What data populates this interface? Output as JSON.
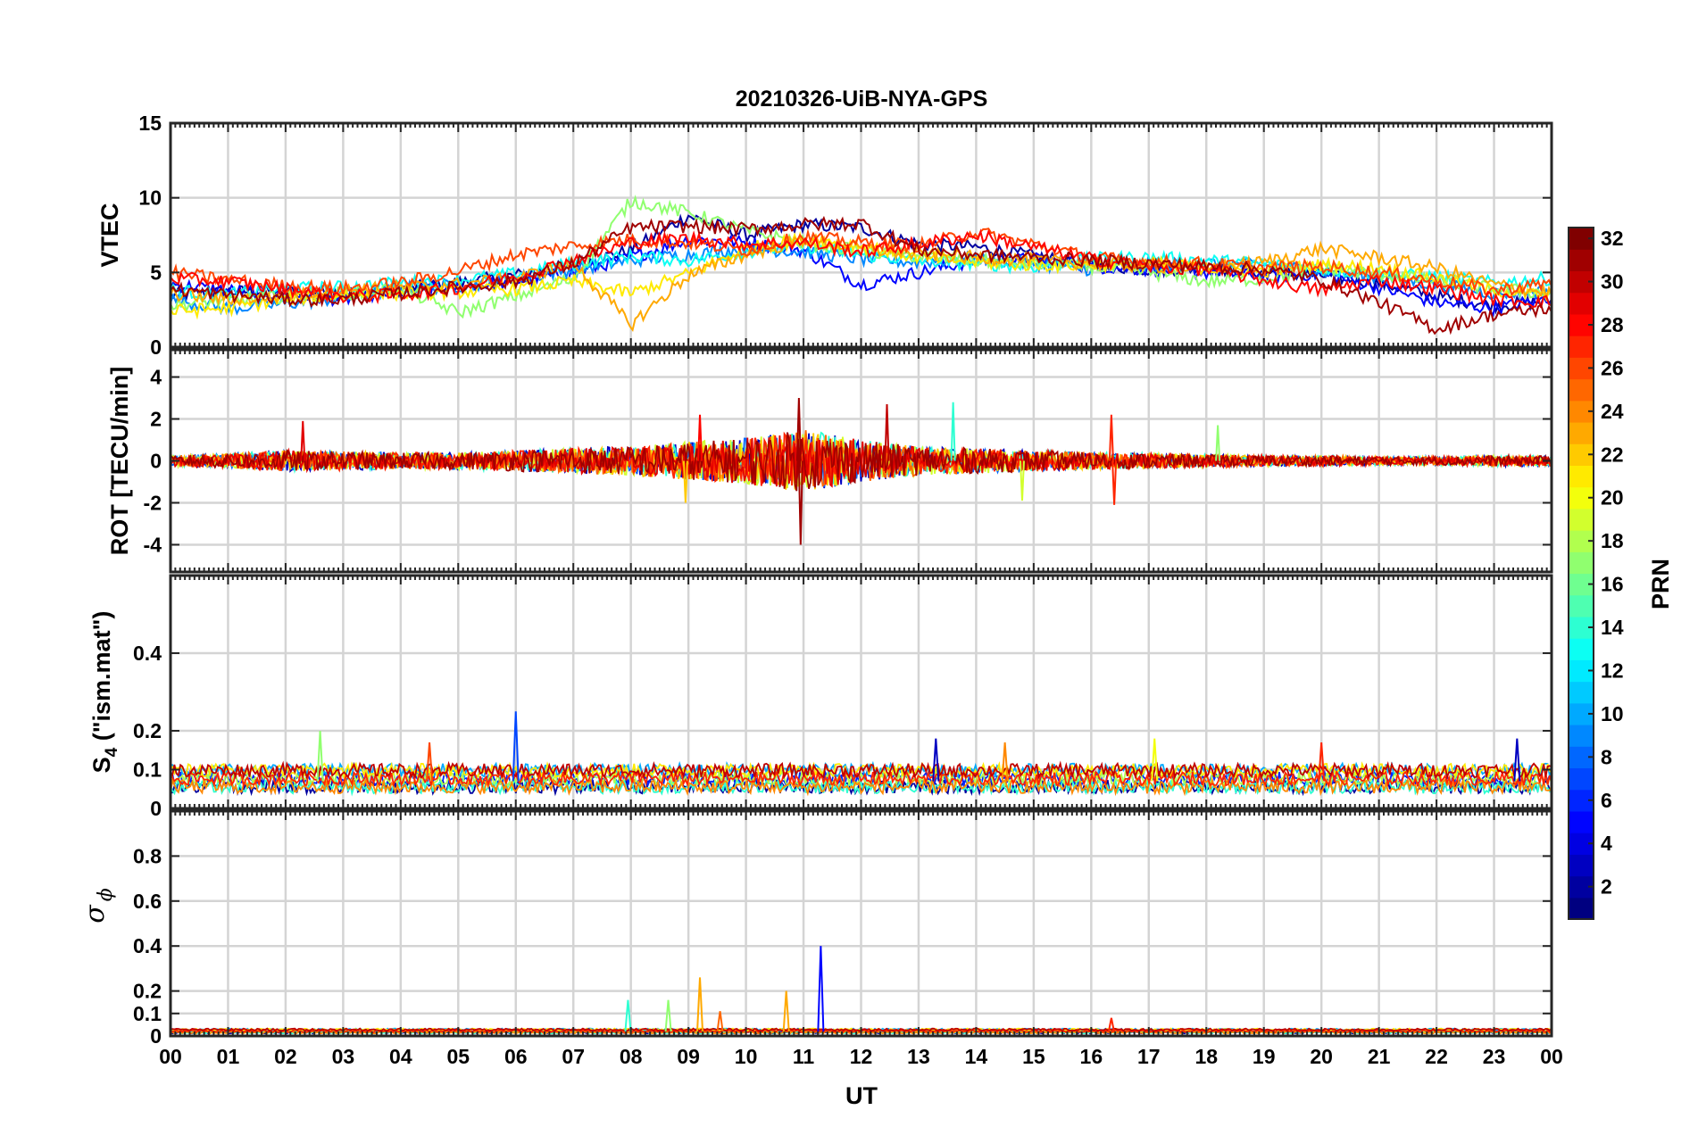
{
  "chart_data": {
    "type": "line",
    "title": "20210326-UiB-NYA-GPS",
    "xlabel": "UT",
    "x_range_hours": [
      0,
      24
    ],
    "x_tick_labels": [
      "00",
      "01",
      "02",
      "03",
      "04",
      "05",
      "06",
      "07",
      "08",
      "09",
      "10",
      "11",
      "12",
      "13",
      "14",
      "15",
      "16",
      "17",
      "18",
      "19",
      "20",
      "21",
      "22",
      "23",
      "00"
    ],
    "grid": true,
    "colormap": "jet",
    "colorbar": {
      "label": "PRN",
      "range": [
        1,
        32
      ],
      "tick_values": [
        2,
        4,
        6,
        8,
        10,
        12,
        14,
        16,
        18,
        20,
        22,
        24,
        26,
        28,
        30,
        32
      ],
      "tick_labels": [
        "2",
        "4",
        "6",
        "8",
        "10",
        "12",
        "14",
        "16",
        "18",
        "20",
        "22",
        "24",
        "26",
        "28",
        "30",
        "32"
      ]
    },
    "panels": [
      {
        "id": "vtec",
        "ylabel": "VTEC",
        "ylim": [
          0,
          15
        ],
        "y_ticks": [
          0,
          5,
          10,
          15
        ],
        "y_tick_labels": [
          "0",
          "5",
          "10",
          "15"
        ],
        "series": [
          {
            "prn": 2,
            "x": [
              0,
              1,
              2,
              3,
              4,
              5,
              6,
              7,
              8,
              9,
              10,
              11,
              12,
              13,
              14,
              15,
              16,
              17,
              18,
              19,
              20,
              21,
              22,
              23,
              24
            ],
            "y": [
              3.5,
              3.7,
              3.8,
              3.6,
              3.9,
              4.3,
              4.8,
              5.5,
              6.5,
              8.8,
              7.5,
              8.2,
              8.0,
              6.9,
              6.7,
              6.1,
              5.5,
              5.2,
              5.3,
              5.0,
              4.8,
              4.3,
              3.4,
              2.8,
              3.1
            ]
          },
          {
            "prn": 5,
            "x": [
              0,
              1,
              2,
              3,
              4,
              5,
              6,
              7,
              8,
              9,
              10,
              11,
              12,
              13,
              14,
              15,
              16,
              17,
              18,
              19,
              20,
              21,
              22,
              23,
              24
            ],
            "y": [
              4.2,
              3.8,
              3.5,
              3.2,
              3.7,
              4.0,
              4.4,
              5.0,
              6.0,
              7.2,
              7.0,
              6.5,
              4.2,
              5.0,
              5.8,
              5.9,
              5.4,
              5.2,
              5.0,
              4.8,
              4.9,
              4.0,
              3.0,
              2.6,
              3.3
            ]
          },
          {
            "prn": 9,
            "x": [
              0,
              1,
              2,
              3,
              4,
              5,
              6,
              7,
              8,
              9,
              10,
              11,
              12,
              13,
              14,
              15,
              16,
              17,
              18,
              19,
              20,
              21,
              22,
              23,
              24
            ],
            "y": [
              3.2,
              2.6,
              2.9,
              3.3,
              3.9,
              4.1,
              4.6,
              5.2,
              5.8,
              6.2,
              6.6,
              6.4,
              5.9,
              5.7,
              5.9,
              5.6,
              5.2,
              5.5,
              5.6,
              5.5,
              5.1,
              4.7,
              4.2,
              3.6,
              3.8
            ]
          },
          {
            "prn": 13,
            "x": [
              0,
              1,
              2,
              3,
              4,
              5,
              6,
              7,
              8,
              9,
              10,
              11,
              12,
              13,
              14,
              15,
              16,
              17,
              18,
              19,
              20,
              21,
              22,
              23,
              24
            ],
            "y": [
              3.8,
              3.5,
              3.9,
              4.0,
              4.3,
              4.5,
              4.9,
              5.6,
              6.1,
              5.8,
              6.4,
              6.8,
              6.2,
              5.8,
              5.6,
              5.4,
              5.9,
              6.0,
              5.8,
              5.6,
              5.2,
              4.9,
              4.7,
              4.3,
              4.6
            ]
          },
          {
            "prn": 17,
            "x": [
              0,
              1,
              2,
              3,
              4,
              5,
              6,
              7,
              8,
              9,
              10,
              11,
              12,
              13,
              14,
              15,
              16,
              17,
              18,
              19,
              20,
              21,
              22,
              23,
              24
            ],
            "y": [
              2.8,
              3.1,
              3.4,
              3.6,
              3.9,
              2.3,
              3.4,
              4.6,
              9.8,
              9.0,
              7.8,
              7.0,
              6.4,
              6.1,
              5.8,
              5.5,
              5.4,
              5.0,
              4.4,
              4.6,
              5.3,
              4.9,
              4.4,
              3.9,
              3.6
            ]
          },
          {
            "prn": 21,
            "x": [
              0,
              1,
              2,
              3,
              4,
              5,
              6,
              7,
              8,
              9,
              10,
              11,
              12,
              13,
              14,
              15,
              16,
              17,
              18,
              19,
              20,
              21,
              22,
              23,
              24
            ],
            "y": [
              2.4,
              2.6,
              3.2,
              3.5,
              3.6,
              3.7,
              3.9,
              4.4,
              3.6,
              4.9,
              6.6,
              7.2,
              6.8,
              6.0,
              5.7,
              5.5,
              5.5,
              5.6,
              5.3,
              5.1,
              5.5,
              5.3,
              4.6,
              3.8,
              3.4
            ]
          },
          {
            "prn": 23,
            "x": [
              0,
              1,
              2,
              3,
              4,
              5,
              6,
              7,
              8,
              9,
              10,
              11,
              12,
              13,
              14,
              15,
              16,
              17,
              18,
              19,
              20,
              21,
              22,
              23,
              24
            ],
            "y": [
              3.6,
              3.2,
              3.4,
              3.8,
              4.0,
              4.2,
              4.6,
              5.6,
              1.5,
              4.8,
              6.2,
              7.2,
              6.6,
              6.2,
              6.0,
              5.8,
              5.6,
              5.4,
              5.3,
              5.7,
              6.6,
              6.0,
              5.3,
              4.2,
              3.6
            ]
          },
          {
            "prn": 26,
            "x": [
              0,
              1,
              2,
              3,
              4,
              5,
              6,
              7,
              8,
              9,
              10,
              11,
              12,
              13,
              14,
              15,
              16,
              17,
              18,
              19,
              20,
              21,
              22,
              23,
              24
            ],
            "y": [
              5.0,
              4.5,
              4.1,
              3.9,
              4.3,
              5.1,
              6.2,
              6.8,
              7.2,
              7.0,
              6.5,
              7.4,
              7.0,
              6.8,
              7.7,
              6.9,
              6.0,
              5.7,
              5.6,
              5.3,
              5.4,
              5.0,
              4.5,
              3.8,
              4.3
            ]
          },
          {
            "prn": 28,
            "x": [
              0,
              1,
              2,
              3,
              4,
              5,
              6,
              7,
              8,
              9,
              10,
              11,
              12,
              13,
              14,
              15,
              16,
              17,
              18,
              19,
              20,
              21,
              22,
              23,
              24
            ],
            "y": [
              4.6,
              4.4,
              3.9,
              3.4,
              3.5,
              4.0,
              4.7,
              5.8,
              7.0,
              7.3,
              6.9,
              7.0,
              6.4,
              6.9,
              7.5,
              6.7,
              5.9,
              5.4,
              5.2,
              4.5,
              3.8,
              4.5,
              3.9,
              3.2,
              3.0
            ]
          },
          {
            "prn": 31,
            "x": [
              0,
              1,
              2,
              3,
              4,
              5,
              6,
              7,
              8,
              9,
              10,
              11,
              12,
              13,
              14,
              15,
              16,
              17,
              18,
              19,
              20,
              21,
              22,
              23,
              24
            ],
            "y": [
              3.9,
              3.5,
              3.2,
              3.2,
              3.6,
              4.0,
              4.4,
              5.6,
              8.0,
              8.1,
              7.9,
              8.2,
              8.3,
              6.5,
              6.2,
              6.0,
              5.8,
              5.6,
              5.4,
              5.2,
              4.5,
              3.0,
              1.2,
              2.2,
              2.6
            ]
          }
        ]
      },
      {
        "id": "rot",
        "ylabel": "ROT [TECU/min]",
        "ylim": [
          -5.3,
          5.3
        ],
        "y_ticks": [
          -4,
          -2,
          0,
          2,
          4
        ],
        "y_tick_labels": [
          "-4",
          "-2",
          "0",
          "2",
          "4"
        ],
        "activity_envelope": {
          "x": [
            0,
            1,
            2,
            3,
            4,
            5,
            6,
            7,
            8,
            9,
            10,
            11,
            12,
            13,
            14,
            15,
            16,
            17,
            18,
            19,
            20,
            21,
            22,
            23,
            24
          ],
          "amplitude": [
            0.25,
            0.35,
            0.5,
            0.45,
            0.4,
            0.4,
            0.5,
            0.6,
            0.7,
            0.9,
            1.1,
            1.5,
            1.0,
            0.7,
            0.6,
            0.5,
            0.4,
            0.35,
            0.3,
            0.25,
            0.25,
            0.2,
            0.2,
            0.25,
            0.25
          ]
        },
        "spikes": [
          {
            "prn": 31,
            "x": 10.95,
            "y": -4.0
          },
          {
            "prn": 31,
            "x": 10.92,
            "y": 3.0
          },
          {
            "prn": 28,
            "x": 9.2,
            "y": 2.2
          },
          {
            "prn": 30,
            "x": 12.45,
            "y": 2.7
          },
          {
            "prn": 14,
            "x": 13.6,
            "y": 2.8
          },
          {
            "prn": 27,
            "x": 16.35,
            "y": 2.2
          },
          {
            "prn": 27,
            "x": 16.4,
            "y": -2.1
          },
          {
            "prn": 22,
            "x": 8.95,
            "y": -2.0
          },
          {
            "prn": 19,
            "x": 14.8,
            "y": -1.9
          },
          {
            "prn": 17,
            "x": 18.2,
            "y": 1.7
          },
          {
            "prn": 29,
            "x": 2.3,
            "y": 1.9
          }
        ]
      },
      {
        "id": "s4",
        "ylabel": "S4 (\"ism.mat\")",
        "ylabel_main": "S",
        "ylabel_sub": "4",
        "ylabel_rest": " (\"ism.mat\")",
        "ylim": [
          0,
          0.6
        ],
        "y_ticks": [
          0,
          0.1,
          0.2,
          0.4
        ],
        "y_tick_labels": [
          "0",
          "0.1",
          "0.2",
          "0.4"
        ],
        "baseline": 0.07,
        "spikes": [
          {
            "prn": 7,
            "x": 6.0,
            "y": 0.25
          },
          {
            "prn": 17,
            "x": 2.6,
            "y": 0.2
          },
          {
            "prn": 3,
            "x": 13.3,
            "y": 0.18
          },
          {
            "prn": 3,
            "x": 23.4,
            "y": 0.18
          },
          {
            "prn": 20,
            "x": 17.1,
            "y": 0.18
          },
          {
            "prn": 27,
            "x": 20.0,
            "y": 0.17
          },
          {
            "prn": 26,
            "x": 4.5,
            "y": 0.17
          },
          {
            "prn": 24,
            "x": 14.5,
            "y": 0.17
          }
        ]
      },
      {
        "id": "sigma_phi",
        "ylabel": "σ ϕ",
        "ylabel_main": "σ",
        "ylabel_sub": "ϕ",
        "ylim": [
          0,
          1
        ],
        "y_ticks": [
          0,
          0.1,
          0.2,
          0.4,
          0.6,
          0.8
        ],
        "y_tick_labels": [
          "0",
          "0.1",
          "0.2",
          "0.4",
          "0.6",
          "0.8"
        ],
        "baseline": 0.02,
        "spikes": [
          {
            "prn": 5,
            "x": 11.3,
            "y": 0.4
          },
          {
            "prn": 23,
            "x": 9.2,
            "y": 0.26
          },
          {
            "prn": 23,
            "x": 10.7,
            "y": 0.2
          },
          {
            "prn": 14,
            "x": 7.95,
            "y": 0.16
          },
          {
            "prn": 17,
            "x": 8.65,
            "y": 0.16
          },
          {
            "prn": 25,
            "x": 9.55,
            "y": 0.11
          },
          {
            "prn": 27,
            "x": 16.35,
            "y": 0.08
          }
        ]
      }
    ]
  }
}
